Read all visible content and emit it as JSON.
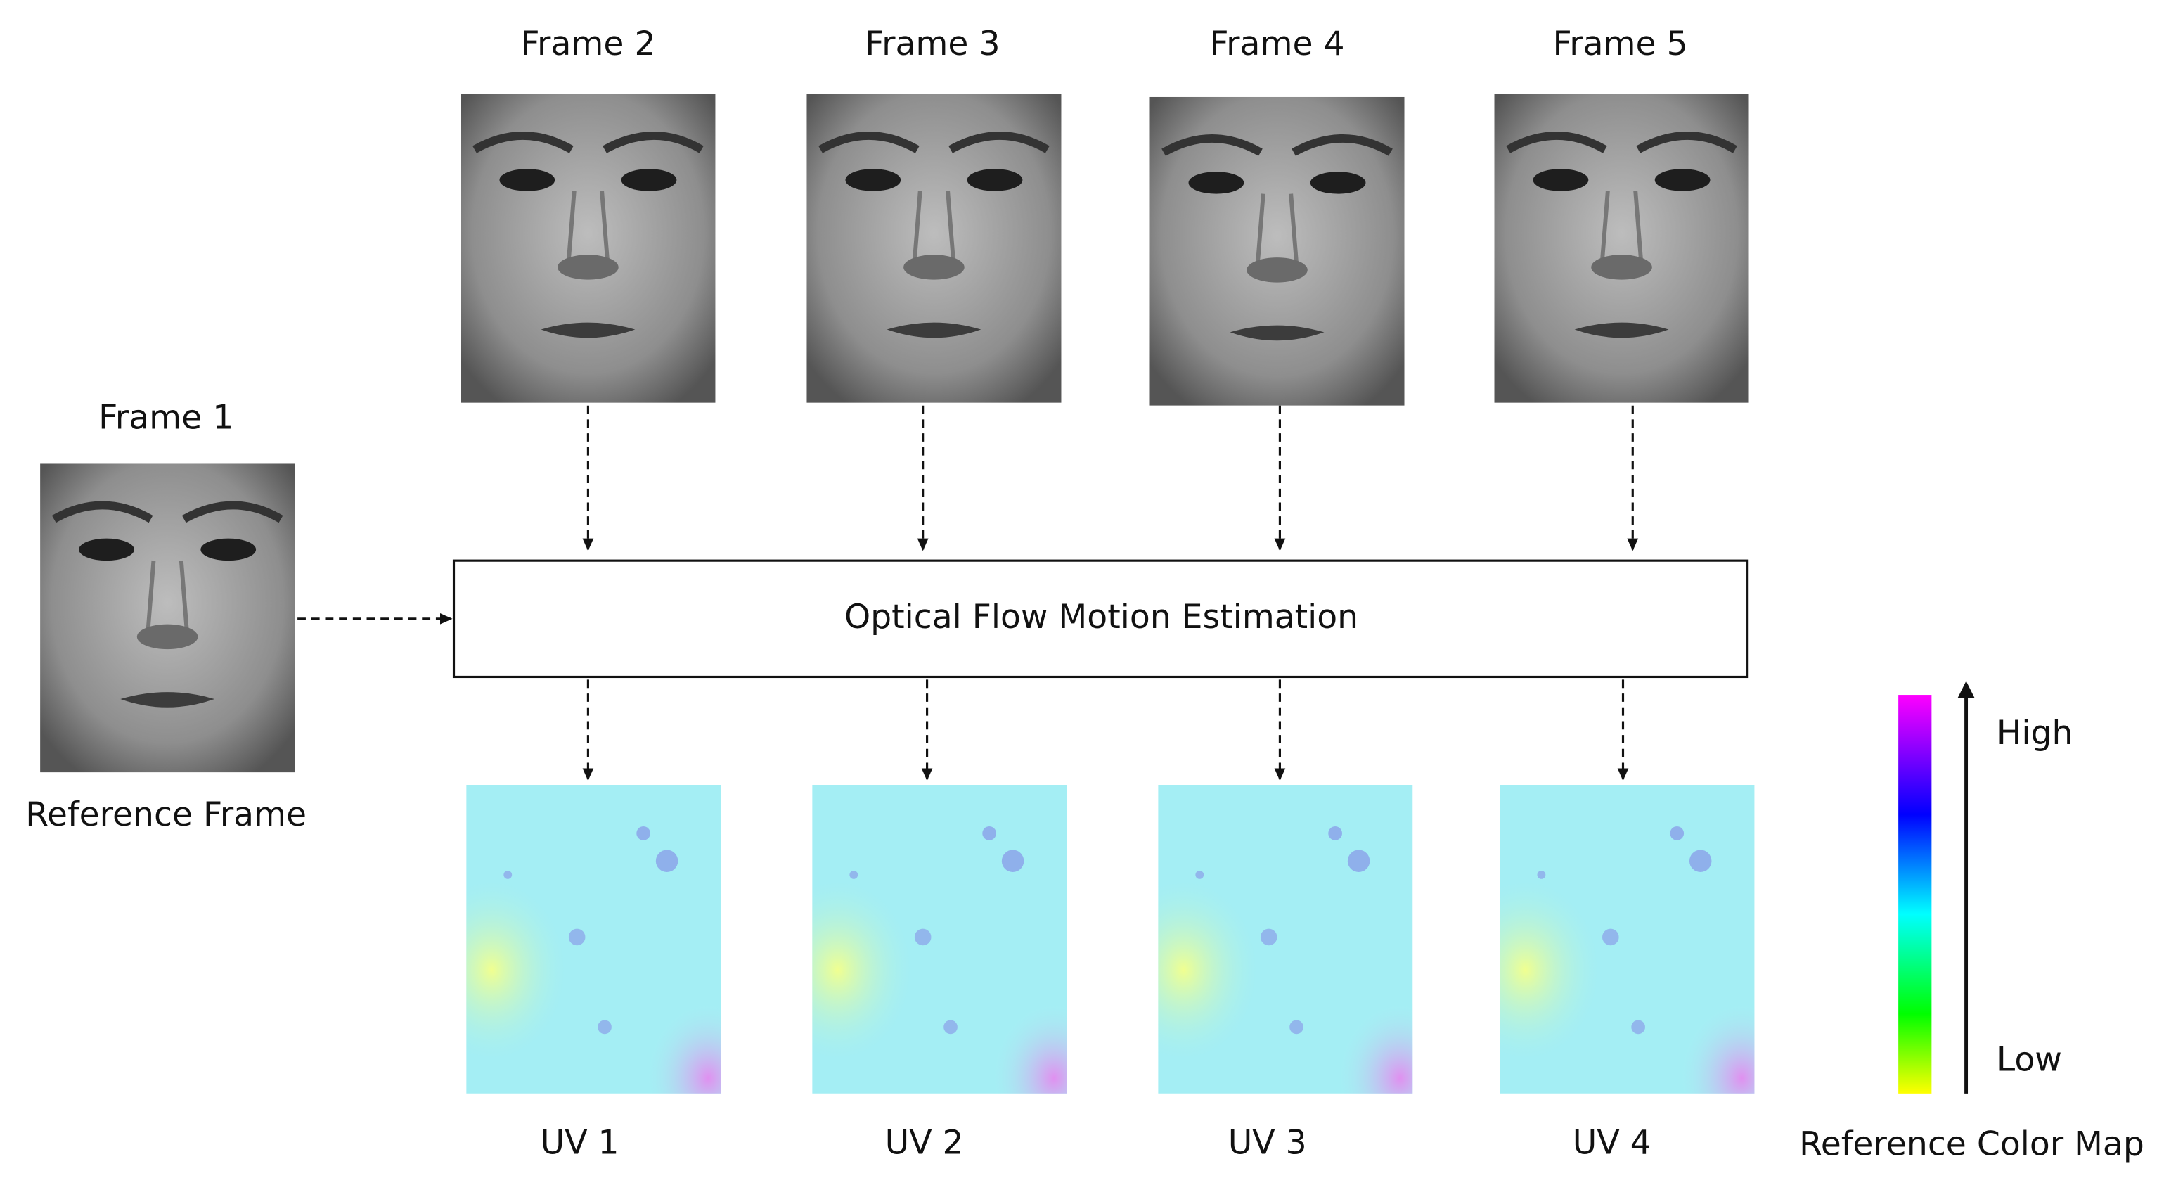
{
  "reference_frame": {
    "title": "Frame 1",
    "caption": "Reference Frame"
  },
  "frames": [
    {
      "label": "Frame 2"
    },
    {
      "label": "Frame 3"
    },
    {
      "label": "Frame 4"
    },
    {
      "label": "Frame 5"
    }
  ],
  "process": {
    "label": "Optical Flow Motion Estimation"
  },
  "outputs": [
    {
      "label": "UV 1"
    },
    {
      "label": "UV 2"
    },
    {
      "label": "UV 3"
    },
    {
      "label": "UV 4"
    }
  ],
  "color_map": {
    "high": "High",
    "low": "Low",
    "caption": "Reference Color Map"
  }
}
